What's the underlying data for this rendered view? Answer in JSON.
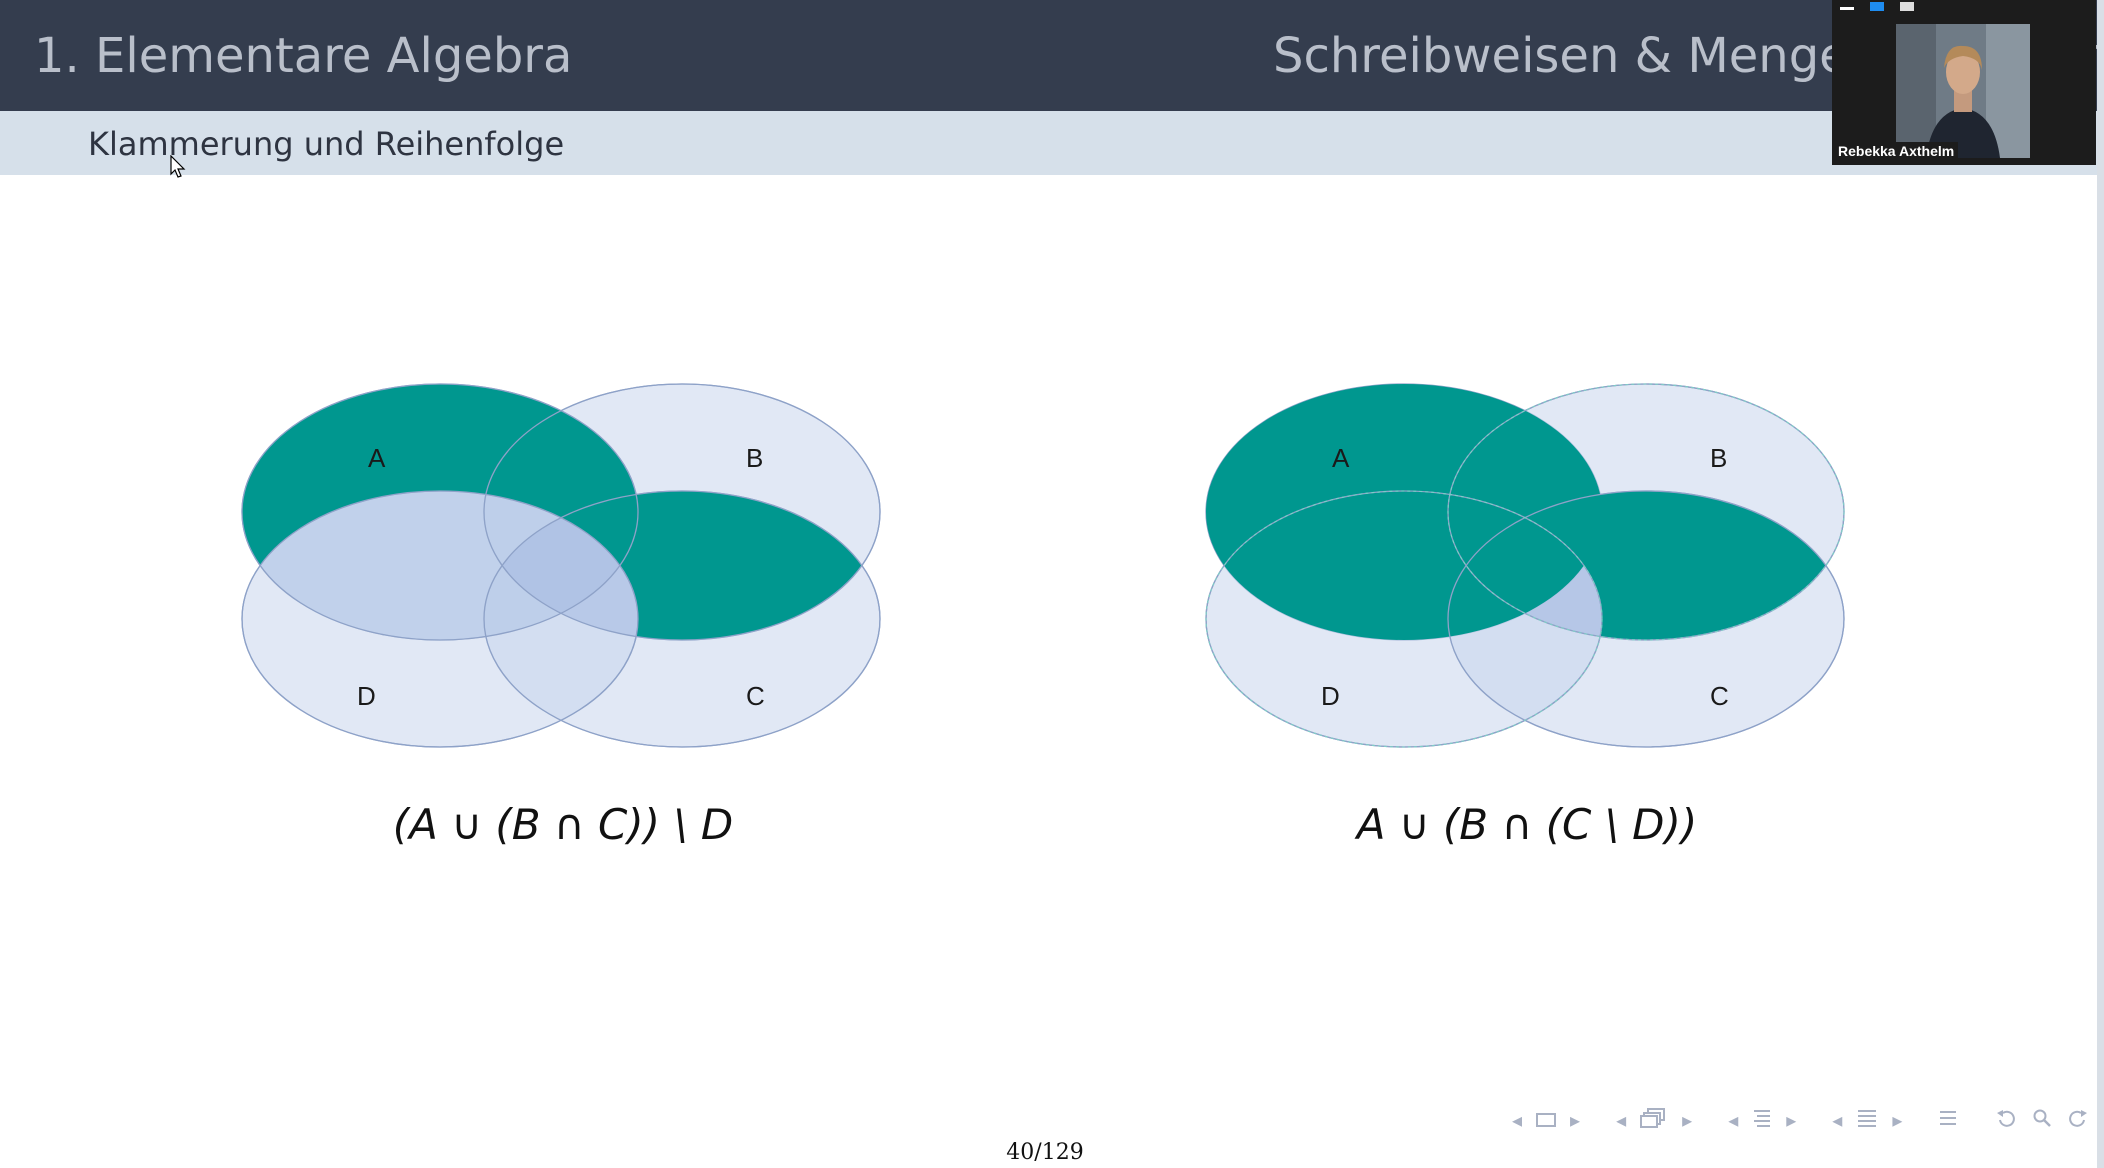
{
  "header": {
    "section": "1. Elementare Algebra",
    "subsection": "Schreibweisen & Mengenoperationen"
  },
  "frame": {
    "title": "Klammerung und Reihenfolge"
  },
  "diagrams": [
    {
      "labels": {
        "a": "A",
        "b": "B",
        "c": "C",
        "d": "D"
      },
      "formula": "(A ∪ (B ∩ C)) \\ D"
    },
    {
      "labels": {
        "a": "A",
        "b": "B",
        "c": "C",
        "d": "D"
      },
      "formula": "A ∪ (B ∩ (C \\ D))"
    }
  ],
  "footer": {
    "page": "40/129"
  },
  "video": {
    "participant": "Rebekka Axthelm"
  },
  "colors": {
    "header_bg": "#343d4e",
    "frametitle_bg": "#d6e0ea",
    "teal": "#00978f",
    "set_fill": "#c9d6ec"
  },
  "icons": [
    "cursor-icon",
    "nav-prev-icon",
    "nav-frame-icon",
    "nav-next-icon",
    "nav-subsection-icon",
    "nav-section-icon",
    "nav-toc-icon",
    "nav-undo-icon",
    "nav-search-icon",
    "nav-redo-icon"
  ]
}
